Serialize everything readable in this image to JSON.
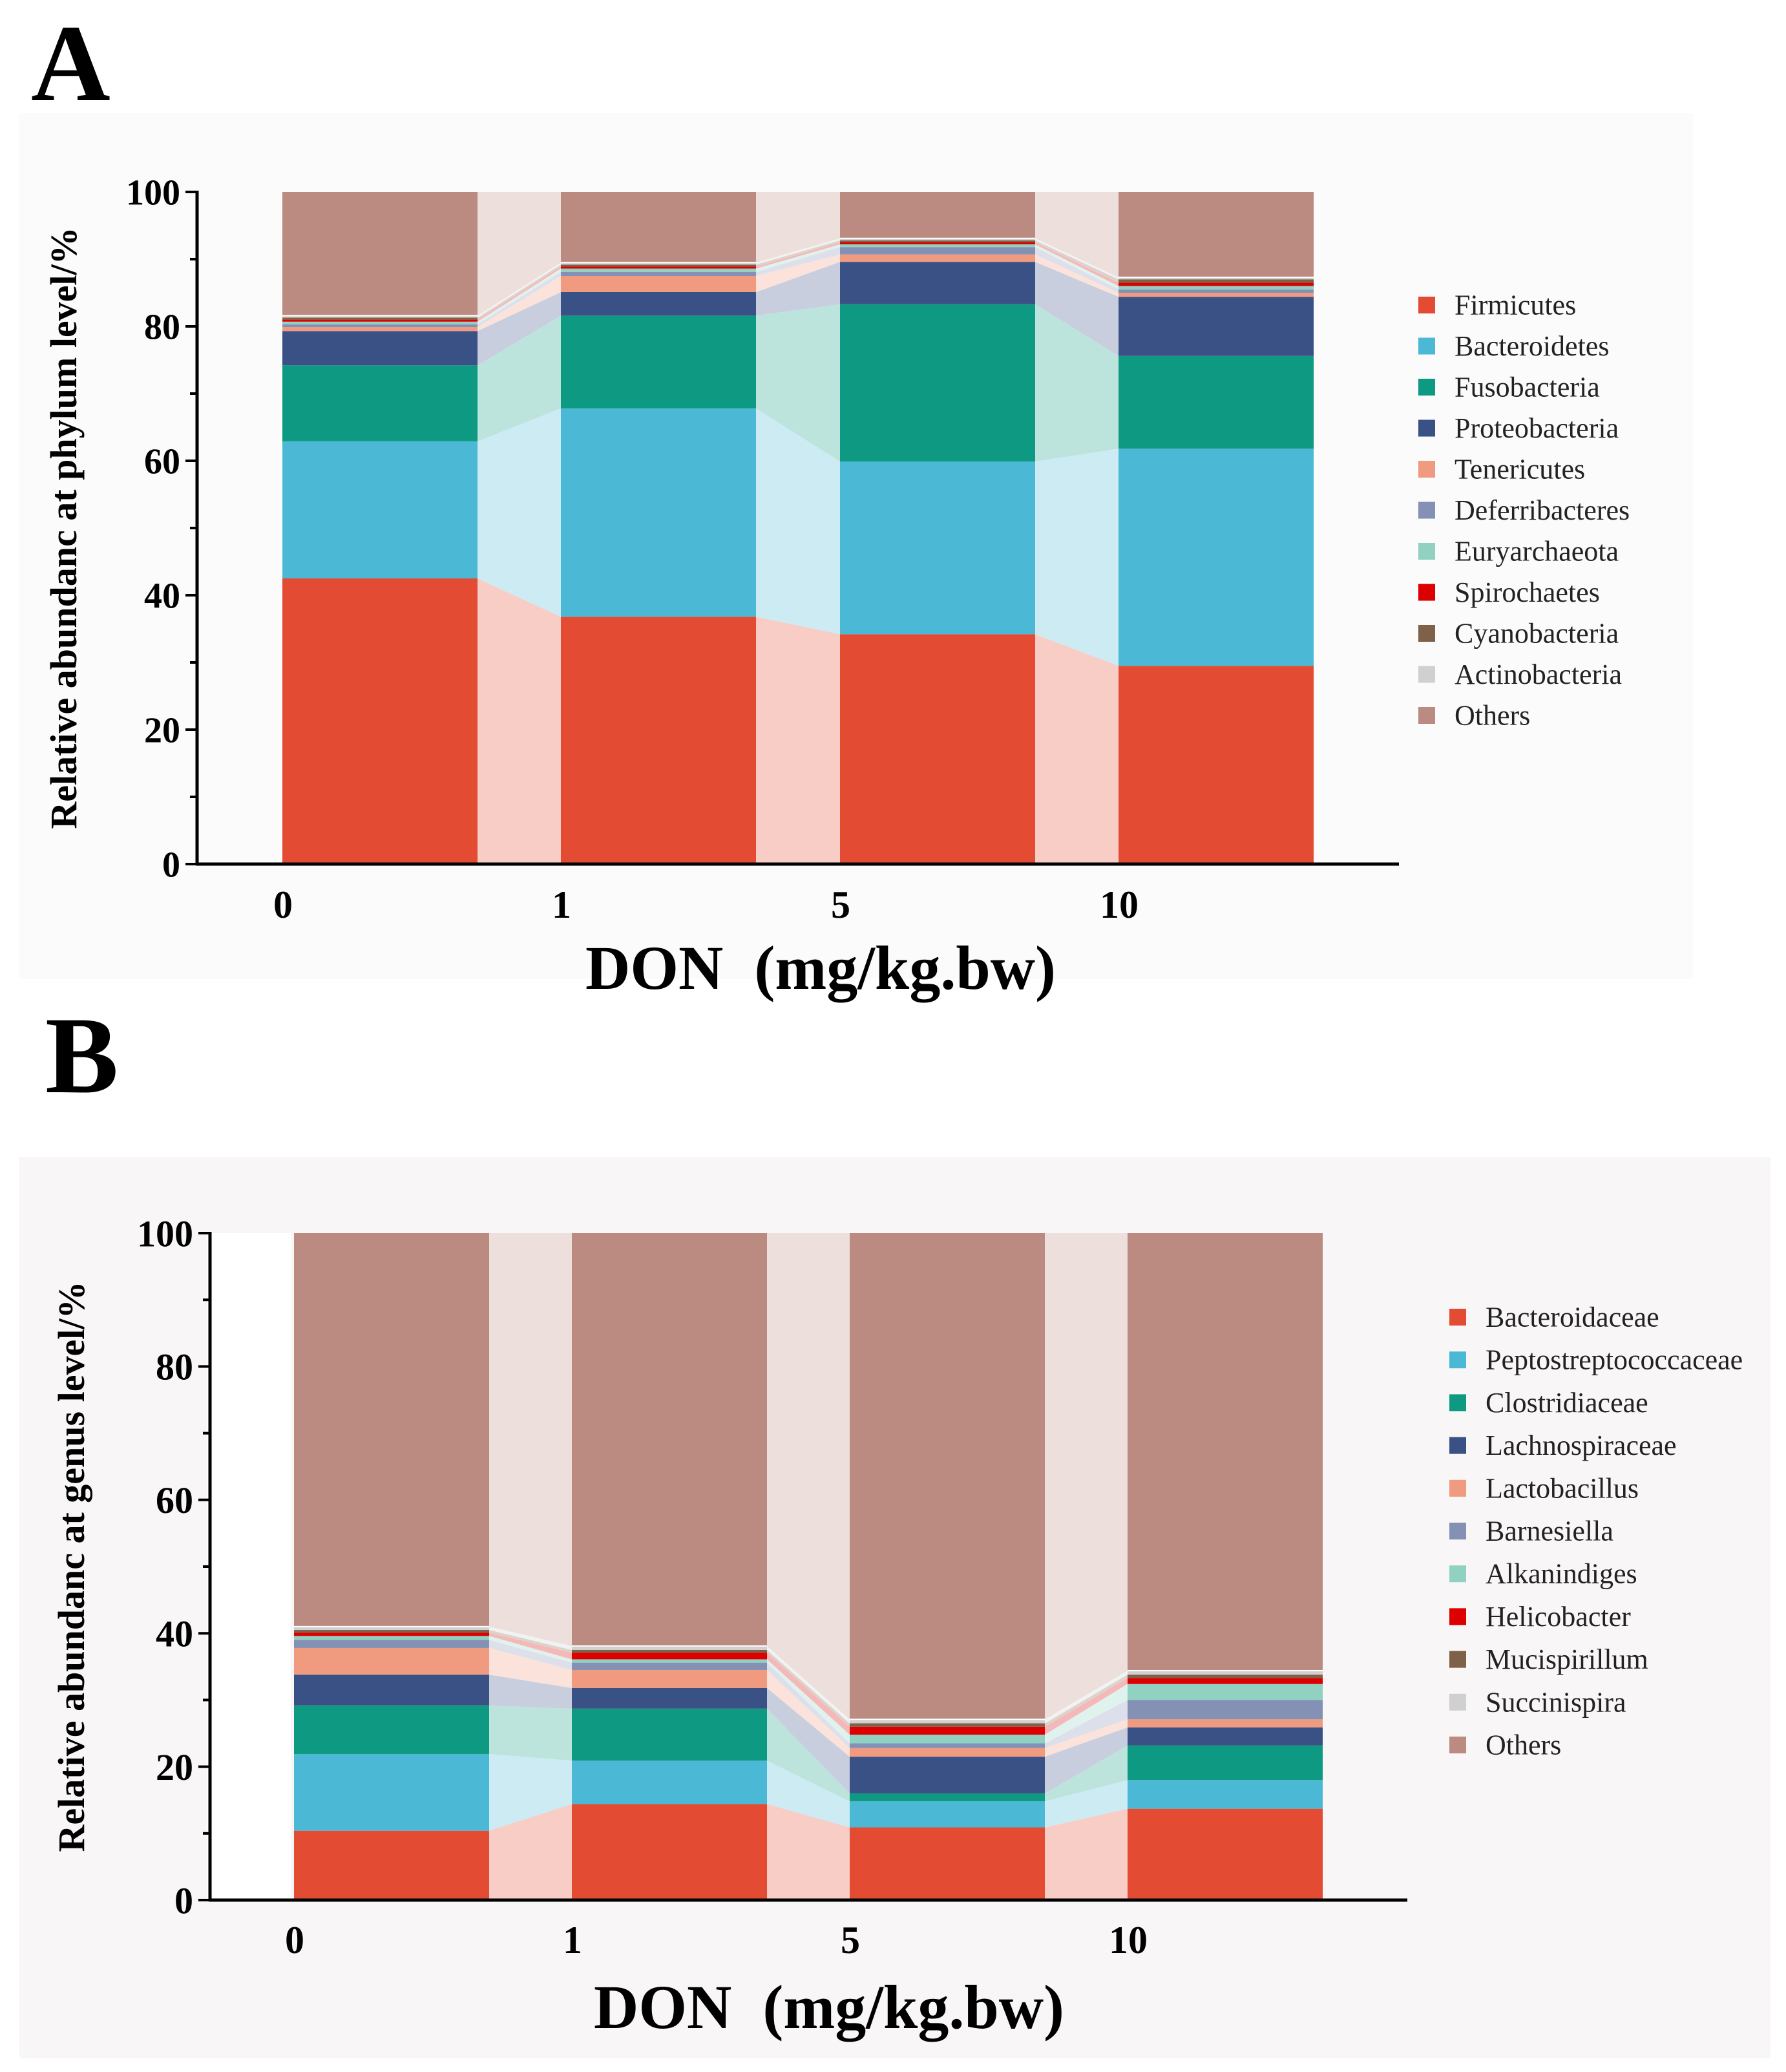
{
  "chart_data": [
    {
      "panel": "A",
      "type": "bar",
      "stacked": true,
      "xlabel": "DON  (mg/kg.bw)",
      "ylabel": "Relative abundanc at phylum level/%",
      "ylim": [
        0,
        100
      ],
      "yticks": [
        "0",
        "20",
        "40",
        "60",
        "80",
        "100"
      ],
      "categories": [
        "0",
        "1",
        "5",
        "10"
      ],
      "series": [
        {
          "name": "Firmicutes",
          "color": "#e34c33",
          "values": [
            42.5,
            36.8,
            34.2,
            29.5
          ]
        },
        {
          "name": "Bacteroidetes",
          "color": "#4bb9d5",
          "values": [
            20.4,
            31.0,
            25.7,
            32.3
          ]
        },
        {
          "name": "Fusobacteria",
          "color": "#0e9a82",
          "values": [
            11.3,
            13.8,
            23.4,
            13.8
          ]
        },
        {
          "name": "Proteobacteria",
          "color": "#3a5185",
          "values": [
            5.1,
            3.5,
            6.3,
            8.8
          ]
        },
        {
          "name": "Tenericutes",
          "color": "#f09a7f",
          "values": [
            0.6,
            2.4,
            1.1,
            0.6
          ]
        },
        {
          "name": "Deferribacteres",
          "color": "#8491b4",
          "values": [
            0.4,
            0.6,
            1.1,
            0.5
          ]
        },
        {
          "name": "Euryarchaeota",
          "color": "#91d1c2",
          "values": [
            0.4,
            0.5,
            0.4,
            0.5
          ]
        },
        {
          "name": "Spirochaetes",
          "color": "#dc0000",
          "values": [
            0.3,
            0.3,
            0.3,
            0.5
          ]
        },
        {
          "name": "Cyanobacteria",
          "color": "#7e6148",
          "values": [
            0.3,
            0.3,
            0.3,
            0.5
          ]
        },
        {
          "name": "Actinobacteria",
          "color": "#d0d0d0",
          "values": [
            0.3,
            0.3,
            0.3,
            0.3
          ]
        },
        {
          "name": "Others",
          "color": "#bb8b82",
          "values": [
            18.4,
            10.5,
            6.9,
            12.7
          ]
        }
      ]
    },
    {
      "panel": "B",
      "type": "bar",
      "stacked": true,
      "xlabel": "DON  (mg/kg.bw)",
      "ylabel": "Relative abundanc at genus level/%",
      "ylim": [
        0,
        100
      ],
      "yticks": [
        "0",
        "20",
        "40",
        "60",
        "80",
        "100"
      ],
      "categories": [
        "0",
        "1",
        "5",
        "10"
      ],
      "series": [
        {
          "name": "Bacteroidaceae",
          "color": "#e34c33",
          "values": [
            10.4,
            14.4,
            10.9,
            13.7
          ]
        },
        {
          "name": "Peptostreptococcaceae",
          "color": "#4bb9d5",
          "values": [
            11.5,
            6.5,
            3.9,
            4.3
          ]
        },
        {
          "name": "Clostridiaceae",
          "color": "#0e9a82",
          "values": [
            7.3,
            7.8,
            1.2,
            5.2
          ]
        },
        {
          "name": "Lachnospiraceae",
          "color": "#3a5185",
          "values": [
            4.6,
            3.1,
            5.5,
            2.7
          ]
        },
        {
          "name": "Lactobacillus",
          "color": "#f09a7f",
          "values": [
            4.0,
            2.7,
            1.3,
            1.2
          ]
        },
        {
          "name": "Barnesiella",
          "color": "#8491b4",
          "values": [
            1.2,
            1.1,
            0.7,
            2.9
          ]
        },
        {
          "name": "Alkanindiges",
          "color": "#91d1c2",
          "values": [
            0.6,
            0.5,
            1.3,
            2.4
          ]
        },
        {
          "name": "Helicobacter",
          "color": "#dc0000",
          "values": [
            0.5,
            1.0,
            1.2,
            0.9
          ]
        },
        {
          "name": "Mucispirillum",
          "color": "#7e6148",
          "values": [
            0.4,
            0.4,
            0.5,
            0.5
          ]
        },
        {
          "name": "Succinispira",
          "color": "#d0d0d0",
          "values": [
            0.5,
            0.6,
            0.6,
            0.6
          ]
        },
        {
          "name": "Others",
          "color": "#bb8b82",
          "values": [
            59.0,
            61.9,
            72.9,
            65.6
          ]
        }
      ]
    }
  ]
}
